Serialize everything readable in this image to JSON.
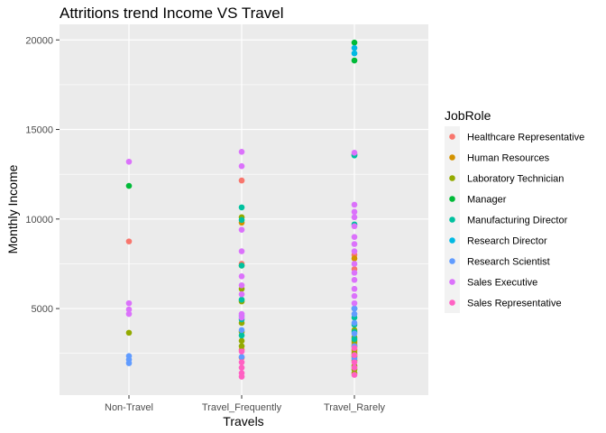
{
  "chart_data": {
    "type": "scatter",
    "title": "Attritions trend Income VS Travel",
    "xlabel": "Travels",
    "ylabel": "Monthly Income",
    "categories": [
      "Non-Travel",
      "Travel_Frequently",
      "Travel_Rarely"
    ],
    "ylim": [
      0,
      21000
    ],
    "yticks": [
      5000,
      10000,
      15000,
      20000
    ],
    "grid": true,
    "legend": {
      "title": "JobRole",
      "placement": "right",
      "entries": [
        {
          "name": "Healthcare Representative",
          "color": "#F8766D"
        },
        {
          "name": "Human Resources",
          "color": "#D39200"
        },
        {
          "name": "Laboratory Technician",
          "color": "#93AA00"
        },
        {
          "name": "Manager",
          "color": "#00BA38"
        },
        {
          "name": "Manufacturing Director",
          "color": "#00C19F"
        },
        {
          "name": "Research Director",
          "color": "#00B9E3"
        },
        {
          "name": "Research Scientist",
          "color": "#619CFF"
        },
        {
          "name": "Sales Executive",
          "color": "#DB72FB"
        },
        {
          "name": "Sales Representative",
          "color": "#FF61C3"
        }
      ]
    },
    "series": [
      {
        "name": "Healthcare Representative",
        "points": [
          [
            "Non-Travel",
            8750
          ],
          [
            "Travel_Frequently",
            12150
          ],
          [
            "Travel_Frequently",
            7500
          ],
          [
            "Travel_Frequently",
            2700
          ],
          [
            "Travel_Frequently",
            2250
          ],
          [
            "Travel_Rarely",
            8000
          ],
          [
            "Travel_Rarely",
            7200
          ],
          [
            "Travel_Rarely",
            3000
          ],
          [
            "Travel_Rarely",
            2600
          ],
          [
            "Travel_Rarely",
            2400
          ]
        ]
      },
      {
        "name": "Human Resources",
        "points": [
          [
            "Travel_Frequently",
            9800
          ],
          [
            "Travel_Frequently",
            7400
          ],
          [
            "Travel_Rarely",
            7800
          ],
          [
            "Travel_Rarely",
            3100
          ],
          [
            "Travel_Rarely",
            2700
          ]
        ]
      },
      {
        "name": "Laboratory Technician",
        "points": [
          [
            "Non-Travel",
            3650
          ],
          [
            "Travel_Frequently",
            10100
          ],
          [
            "Travel_Frequently",
            6100
          ],
          [
            "Travel_Frequently",
            5400
          ],
          [
            "Travel_Frequently",
            4200
          ],
          [
            "Travel_Frequently",
            3700
          ],
          [
            "Travel_Frequently",
            3200
          ],
          [
            "Travel_Frequently",
            2900
          ],
          [
            "Travel_Rarely",
            3800
          ],
          [
            "Travel_Rarely",
            3400
          ],
          [
            "Travel_Rarely",
            3200
          ],
          [
            "Travel_Rarely",
            2900
          ],
          [
            "Travel_Rarely",
            2500
          ],
          [
            "Travel_Rarely",
            2300
          ],
          [
            "Travel_Rarely",
            2100
          ],
          [
            "Travel_Rarely",
            1800
          ],
          [
            "Travel_Rarely",
            1600
          ],
          [
            "Travel_Rarely",
            1400
          ]
        ]
      },
      {
        "name": "Manager",
        "points": [
          [
            "Non-Travel",
            11850
          ],
          [
            "Travel_Rarely",
            19850
          ],
          [
            "Travel_Rarely",
            18850
          ],
          [
            "Travel_Rarely",
            13600
          ]
        ]
      },
      {
        "name": "Manufacturing Director",
        "points": [
          [
            "Travel_Frequently",
            10650
          ],
          [
            "Travel_Frequently",
            9950
          ],
          [
            "Travel_Frequently",
            7400
          ],
          [
            "Travel_Frequently",
            5500
          ],
          [
            "Travel_Frequently",
            4400
          ],
          [
            "Travel_Frequently",
            3500
          ],
          [
            "Travel_Rarely",
            13550
          ],
          [
            "Travel_Rarely",
            9700
          ],
          [
            "Travel_Rarely",
            5000
          ],
          [
            "Travel_Rarely",
            4500
          ],
          [
            "Travel_Rarely",
            4100
          ],
          [
            "Travel_Rarely",
            3700
          ],
          [
            "Travel_Rarely",
            3300
          ]
        ]
      },
      {
        "name": "Research Director",
        "points": [
          [
            "Travel_Rarely",
            19550
          ],
          [
            "Travel_Rarely",
            19250
          ]
        ]
      },
      {
        "name": "Research Scientist",
        "points": [
          [
            "Non-Travel",
            2350
          ],
          [
            "Non-Travel",
            2150
          ],
          [
            "Non-Travel",
            1950
          ],
          [
            "Travel_Frequently",
            4600
          ],
          [
            "Travel_Frequently",
            3800
          ],
          [
            "Travel_Frequently",
            2300
          ],
          [
            "Travel_Rarely",
            5000
          ],
          [
            "Travel_Rarely",
            4700
          ],
          [
            "Travel_Rarely",
            4200
          ],
          [
            "Travel_Rarely",
            3600
          ],
          [
            "Travel_Rarely",
            2900
          ],
          [
            "Travel_Rarely",
            2200
          ]
        ]
      },
      {
        "name": "Sales Executive",
        "points": [
          [
            "Non-Travel",
            13200
          ],
          [
            "Non-Travel",
            5300
          ],
          [
            "Non-Travel",
            4950
          ],
          [
            "Non-Travel",
            4700
          ],
          [
            "Travel_Frequently",
            13750
          ],
          [
            "Travel_Frequently",
            12950
          ],
          [
            "Travel_Frequently",
            9400
          ],
          [
            "Travel_Frequently",
            8200
          ],
          [
            "Travel_Frequently",
            6800
          ],
          [
            "Travel_Frequently",
            6300
          ],
          [
            "Travel_Frequently",
            5800
          ],
          [
            "Travel_Frequently",
            4700
          ],
          [
            "Travel_Frequently",
            4500
          ],
          [
            "Travel_Rarely",
            13700
          ],
          [
            "Travel_Rarely",
            10800
          ],
          [
            "Travel_Rarely",
            10400
          ],
          [
            "Travel_Rarely",
            10100
          ],
          [
            "Travel_Rarely",
            9600
          ],
          [
            "Travel_Rarely",
            9000
          ],
          [
            "Travel_Rarely",
            8600
          ],
          [
            "Travel_Rarely",
            8200
          ],
          [
            "Travel_Rarely",
            7500
          ],
          [
            "Travel_Rarely",
            7000
          ],
          [
            "Travel_Rarely",
            6600
          ],
          [
            "Travel_Rarely",
            6100
          ],
          [
            "Travel_Rarely",
            5700
          ],
          [
            "Travel_Rarely",
            5300
          ]
        ]
      },
      {
        "name": "Sales Representative",
        "points": [
          [
            "Travel_Frequently",
            2600
          ],
          [
            "Travel_Frequently",
            2000
          ],
          [
            "Travel_Frequently",
            1700
          ],
          [
            "Travel_Frequently",
            1400
          ],
          [
            "Travel_Frequently",
            1200
          ],
          [
            "Travel_Rarely",
            2800
          ],
          [
            "Travel_Rarely",
            2400
          ],
          [
            "Travel_Rarely",
            2000
          ],
          [
            "Travel_Rarely",
            1700
          ],
          [
            "Travel_Rarely",
            1300
          ]
        ]
      }
    ]
  }
}
